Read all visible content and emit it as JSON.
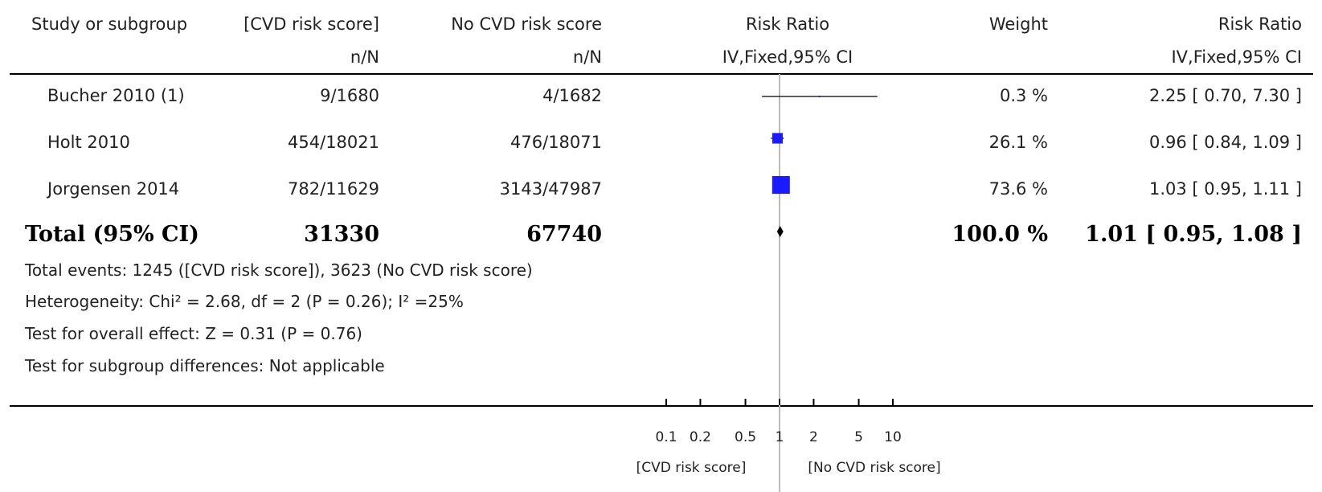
{
  "header": {
    "study": "Study or subgroup",
    "group1": "[CVD risk score]",
    "group1_sub": "n/N",
    "group2": "No CVD risk score",
    "group2_sub": "n/N",
    "rr_plot": "Risk Ratio",
    "rr_plot_sub": "IV,Fixed,95% CI",
    "weight": "Weight",
    "rr_text": "Risk Ratio",
    "rr_text_sub": "IV,Fixed,95% CI"
  },
  "studies": [
    {
      "name": "Bucher 2010 (1)",
      "g1": "9/1680",
      "g2": "4/1682",
      "weight": "0.3 %",
      "ci": "2.25 [ 0.70, 7.30 ]"
    },
    {
      "name": "Holt 2010",
      "g1": "454/18021",
      "g2": "476/18071",
      "weight": "26.1 %",
      "ci": "0.96 [ 0.84, 1.09 ]"
    },
    {
      "name": "Jorgensen 2014",
      "g1": "782/11629",
      "g2": "3143/47987",
      "weight": "73.6 %",
      "ci": "1.03 [ 0.95, 1.11 ]"
    }
  ],
  "total": {
    "label": "Total (95% CI)",
    "g1": "31330",
    "g2": "67740",
    "weight": "100.0 %",
    "ci": "1.01 [ 0.95, 1.08 ]"
  },
  "footnotes": {
    "events": "Total events: 1245 ([CVD risk score]), 3623 (No CVD risk score)",
    "heterogeneity": "Heterogeneity: Chi² = 2.68, df = 2 (P = 0.26); I² =25%",
    "overall": "Test for overall effect: Z = 0.31 (P = 0.76)",
    "subgroup": "Test for subgroup differences: Not applicable"
  },
  "axis": {
    "favours_left": "[CVD risk score]",
    "favours_right": "[No CVD risk score]"
  },
  "colors": {
    "marker": "#1a1aff",
    "line": "#000000",
    "null_line": "#bbbbbb"
  },
  "chart_data": {
    "type": "forest",
    "scale": "log",
    "xlim": [
      0.1,
      10
    ],
    "ticks": [
      0.1,
      0.2,
      0.5,
      1,
      2,
      5,
      10
    ],
    "tick_labels": [
      "0.1",
      "0.2",
      "0.5",
      "1",
      "2",
      "5",
      "10"
    ],
    "null_value": 1,
    "series": [
      {
        "name": "Bucher 2010 (1)",
        "rr": 2.25,
        "lo": 0.7,
        "hi": 7.3,
        "weight": 0.3
      },
      {
        "name": "Holt 2010",
        "rr": 0.96,
        "lo": 0.84,
        "hi": 1.09,
        "weight": 26.1
      },
      {
        "name": "Jorgensen 2014",
        "rr": 1.03,
        "lo": 0.95,
        "hi": 1.11,
        "weight": 73.6
      }
    ],
    "pooled": {
      "rr": 1.01,
      "lo": 0.95,
      "hi": 1.08,
      "weight": 100.0
    }
  }
}
